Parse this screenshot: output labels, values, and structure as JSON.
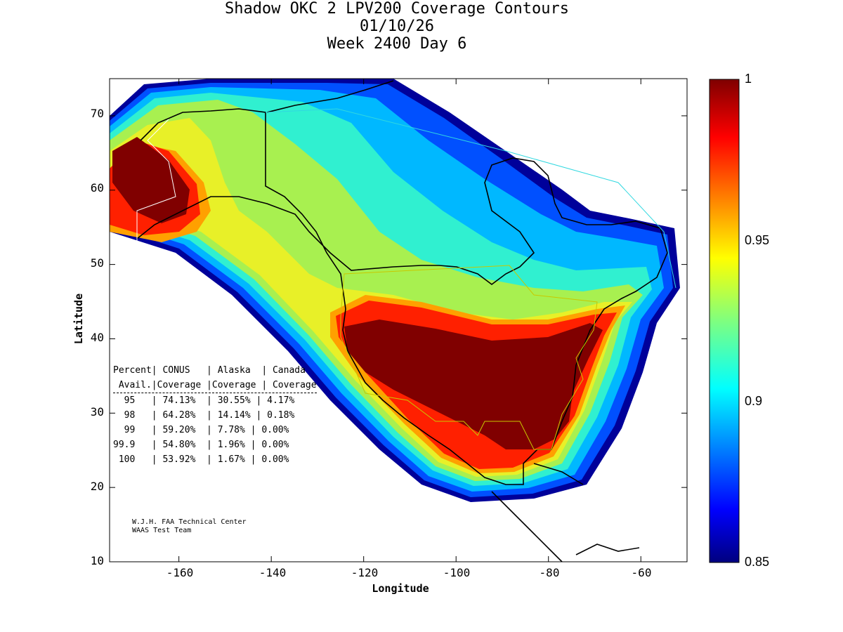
{
  "title": {
    "line1": "Shadow OKC 2 LPV200 Coverage Contours",
    "line2": "01/10/26",
    "line3": "Week 2400 Day 6"
  },
  "axes": {
    "xlabel": "Longitude",
    "ylabel": "Latitude",
    "x_ticks": [
      "-160",
      "-140",
      "-120",
      "-100",
      "-80",
      "-60"
    ],
    "y_ticks": [
      "70",
      "60",
      "50",
      "40",
      "30",
      "20",
      "10"
    ],
    "xlim": [
      -175,
      -50
    ],
    "ylim": [
      10,
      75
    ]
  },
  "colorbar": {
    "labels": [
      "1",
      "0.95",
      "0.9",
      "0.85"
    ],
    "range": [
      0.85,
      1
    ],
    "colormap": "jet"
  },
  "stats_table": {
    "header1": "Percent| CONUS   | Alaska  | Canada",
    "header2": " Avail.|Coverage |Coverage | Coverage",
    "rows": [
      "  95   | 74.13%  | 30.55% | 4.17%",
      "  98   | 64.28%  | 14.14% | 0.18%",
      "  99   | 59.20%  | 7.78% | 0.00%",
      "99.9   | 54.80%  | 1.96% | 0.00%",
      " 100   | 53.92%  | 1.67% | 0.00%"
    ]
  },
  "credit": {
    "line1": "W.J.H. FAA Technical Center",
    "line2": "WAAS Test Team"
  },
  "colors": {
    "dark_red": "#800000",
    "red": "#ff1a00",
    "orange": "#ff9a00",
    "yellow": "#f0f020",
    "yellow_green": "#c8f040",
    "cyan": "#20d8e8",
    "blue": "#1060f0",
    "dark_blue": "#0000a0"
  }
}
